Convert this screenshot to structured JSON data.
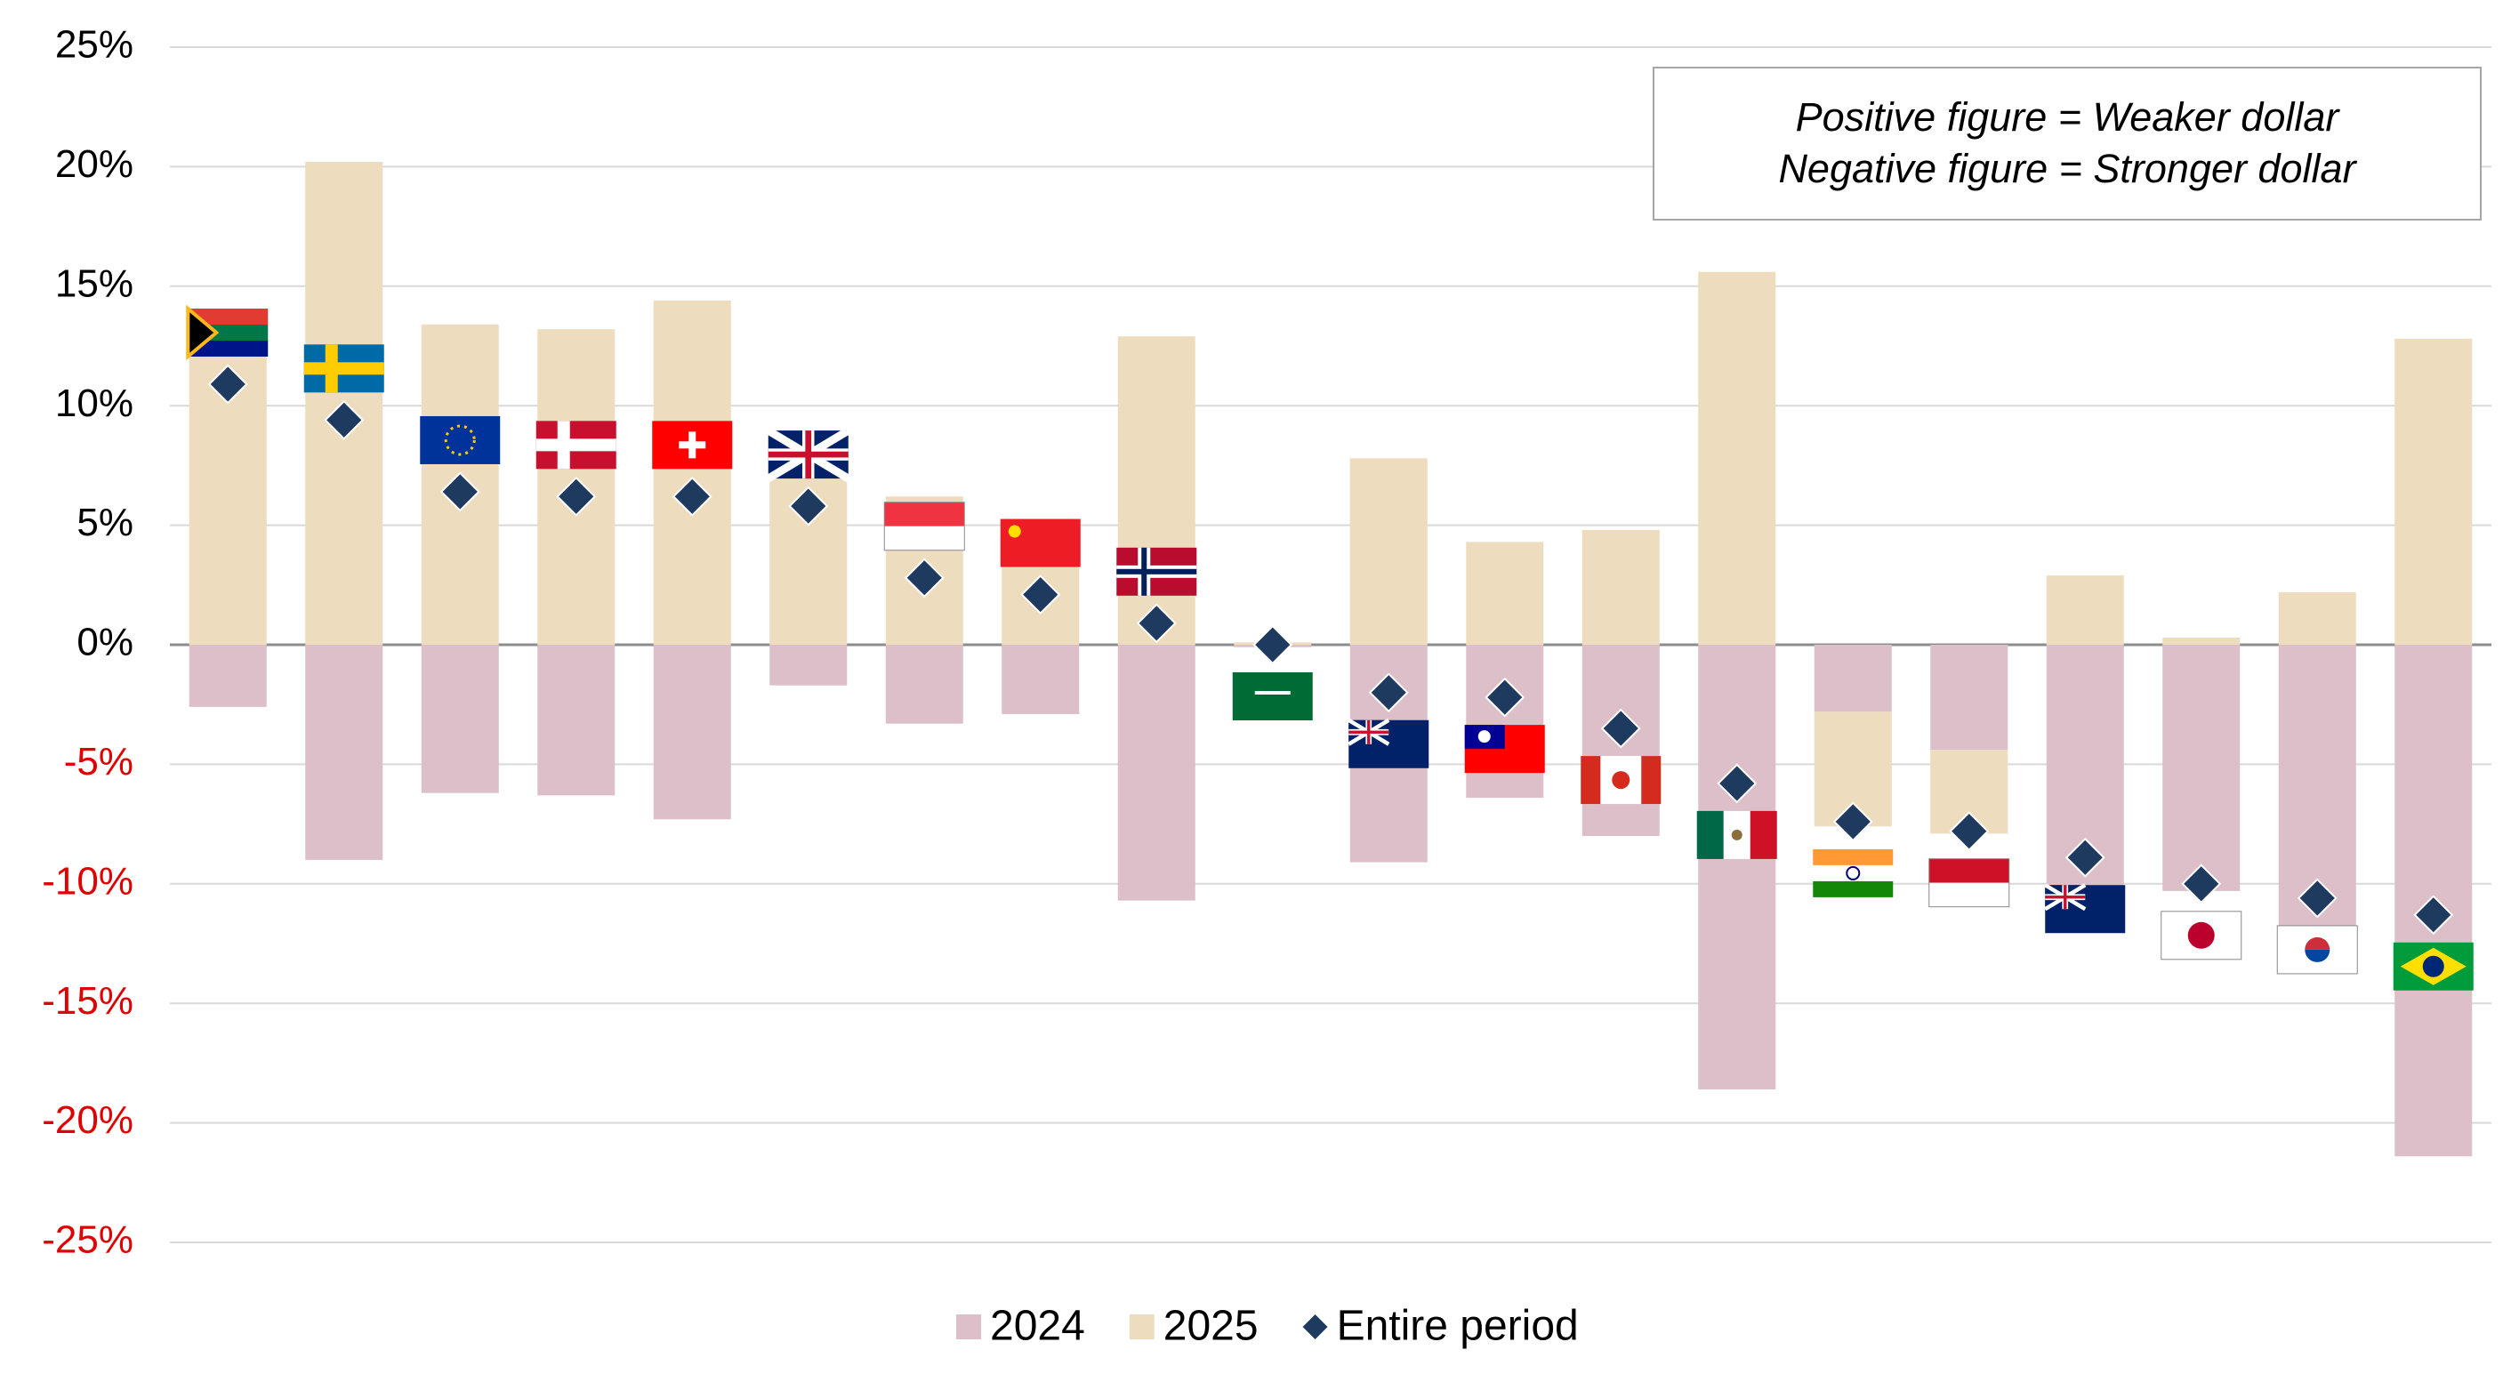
{
  "chart_data": {
    "type": "bar",
    "categories": [
      null,
      null,
      null,
      null,
      null,
      null,
      null,
      null,
      null,
      null,
      null,
      null,
      null,
      null,
      null,
      null,
      null,
      null,
      null,
      null
    ],
    "series": [
      {
        "name": "2024",
        "color": "#dcbfc9",
        "values": [
          -2.6,
          -9.0,
          -6.2,
          -6.3,
          -7.3,
          -1.7,
          -3.3,
          -2.9,
          -10.7,
          -0.1,
          -9.1,
          -6.4,
          -8.0,
          -18.6,
          -2.8,
          -4.4,
          -10.4,
          -10.3,
          -12.0,
          -21.4
        ]
      },
      {
        "name": "2025",
        "color": "#eedcbf",
        "values": [
          13.5,
          20.2,
          13.4,
          13.2,
          14.4,
          7.7,
          6.2,
          5.2,
          12.9,
          0.1,
          7.8,
          4.3,
          4.8,
          15.6,
          -4.8,
          -3.5,
          2.9,
          0.3,
          2.2,
          12.8
        ]
      },
      {
        "name": "Entire period",
        "color": "#1f3a5f",
        "values": [
          10.9,
          9.4,
          6.4,
          6.2,
          6.2,
          5.8,
          2.8,
          2.1,
          0.9,
          0.0,
          -2.0,
          -2.2,
          -3.5,
          -5.8,
          -7.4,
          -7.8,
          -8.9,
          -10.0,
          -10.6,
          -11.3
        ]
      }
    ],
    "ylim": [
      -25,
      25
    ],
    "yticks": [
      {
        "value": -25,
        "label": "-25%"
      },
      {
        "value": -20,
        "label": "-20%"
      },
      {
        "value": -15,
        "label": "-15%"
      },
      {
        "value": -10,
        "label": "-10%"
      },
      {
        "value": -5,
        "label": "-5%"
      },
      {
        "value": 0,
        "label": "0%"
      },
      {
        "value": 5,
        "label": "5%"
      },
      {
        "value": 10,
        "label": "10%"
      },
      {
        "value": 15,
        "label": "15%"
      },
      {
        "value": 20,
        "label": "20%"
      },
      {
        "value": 25,
        "label": "25%"
      }
    ],
    "grid": true,
    "legend": "bottom",
    "annotations": [
      "Positive figure = Weaker dollar",
      "Negative figure = Stronger dollar"
    ]
  }
}
